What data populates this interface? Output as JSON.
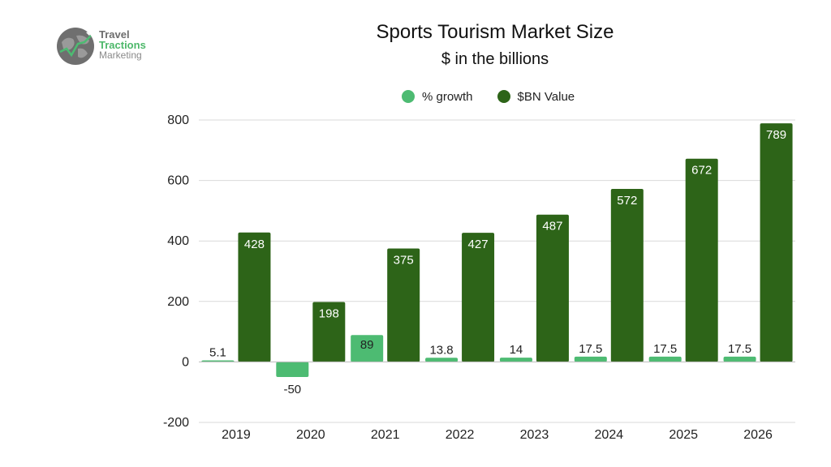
{
  "logo": {
    "line1": "Travel",
    "line2": "Tractions",
    "line3": "Marketing"
  },
  "colors": {
    "growth": "#4dbb72",
    "value": "#2d6418",
    "grid": "#d9d9d9"
  },
  "chart_data": {
    "type": "bar",
    "title": "Sports Tourism Market Size",
    "subtitle": "$ in the billions",
    "xlabel": "",
    "ylabel": "",
    "categories": [
      "2019",
      "2020",
      "2021",
      "2022",
      "2023",
      "2024",
      "2025",
      "2026"
    ],
    "series": [
      {
        "name": "% growth",
        "values": [
          5.1,
          -50,
          89,
          13.8,
          14,
          17.5,
          17.5,
          17.5
        ],
        "labels": [
          "5.1",
          "-50",
          "89",
          "13.8",
          "14",
          "17.5",
          "17.5",
          "17.5"
        ]
      },
      {
        "name": "$BN Value",
        "values": [
          428,
          198,
          375,
          427,
          487,
          572,
          672,
          789
        ],
        "labels": [
          "428",
          "198",
          "375",
          "427",
          "487",
          "572",
          "672",
          "789"
        ]
      }
    ],
    "ylim": [
      -200,
      800
    ],
    "yticks": [
      "-200",
      "0",
      "200",
      "400",
      "600",
      "800"
    ],
    "grid": true,
    "legend_position": "top"
  }
}
